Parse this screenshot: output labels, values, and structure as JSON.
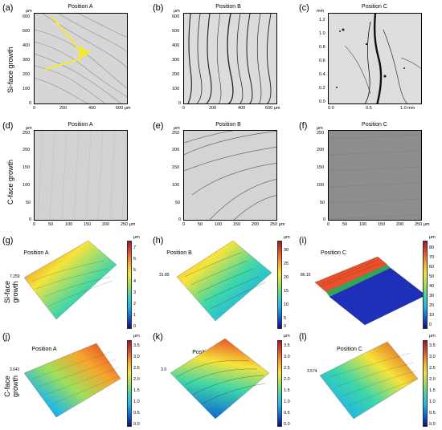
{
  "row_labels": {
    "si_face": "Si-face growth",
    "c_face": "C-face growth",
    "si_face_3d_line1": "Si-face",
    "si_face_3d_line2": "growth",
    "c_face_3d_line1": "C-face",
    "c_face_3d_line2": "growth"
  },
  "panels": {
    "a": {
      "label": "(a)",
      "title": "Position A",
      "unit": "μm",
      "yticks": [
        "600",
        "500",
        "400",
        "300",
        "200",
        "100",
        "0"
      ],
      "xticks": [
        "0",
        "200",
        "400",
        "600 μm"
      ]
    },
    "b": {
      "label": "(b)",
      "title": "Position B",
      "unit": "μm",
      "yticks": [
        "600",
        "500",
        "400",
        "300",
        "200",
        "100",
        "0"
      ],
      "xticks": [
        "0",
        "200",
        "400",
        "600 μm"
      ]
    },
    "c": {
      "label": "(c)",
      "title": "Position C",
      "unit": "mm",
      "yticks": [
        "1.2",
        "1.0",
        "0.8",
        "0.6",
        "0.4",
        "0.2",
        "0.0"
      ],
      "xticks": [
        "0.0",
        "0.5",
        "1.0 mm"
      ]
    },
    "d": {
      "label": "(d)",
      "title": "Position A",
      "unit": "μm",
      "yticks": [
        "250",
        "200",
        "150",
        "100",
        "50",
        "0"
      ],
      "xticks": [
        "0",
        "50",
        "100",
        "150",
        "200",
        "250 μm"
      ]
    },
    "e": {
      "label": "(e)",
      "title": "Position B",
      "unit": "μm",
      "yticks": [
        "250",
        "200",
        "150",
        "100",
        "50",
        "0"
      ],
      "xticks": [
        "0",
        "50",
        "100",
        "150",
        "200",
        "250 μm"
      ]
    },
    "f": {
      "label": "(f)",
      "title": "Position C",
      "unit": "μm",
      "yticks": [
        "250",
        "200",
        "150",
        "100",
        "50",
        "0"
      ],
      "xticks": [
        "0",
        "50",
        "100",
        "150",
        "200",
        "250 μm"
      ]
    },
    "g": {
      "label": "(g)",
      "title": "Position A",
      "zmax": "7.259",
      "cbar_unit": "μm",
      "cbar_ticks": [
        "7",
        "6",
        "5",
        "4",
        "3",
        "2",
        "1",
        "0"
      ]
    },
    "h": {
      "label": "(h)",
      "title": "Position B",
      "zmax": "31.89",
      "cbar_unit": "μm",
      "cbar_ticks": [
        "30",
        "25",
        "20",
        "15",
        "10",
        "5",
        "0"
      ]
    },
    "i": {
      "label": "(i)",
      "title": "Position C",
      "zmax": "86.16",
      "cbar_unit": "μm",
      "cbar_ticks": [
        "80",
        "70",
        "60",
        "50",
        "40",
        "30",
        "20",
        "10",
        "0"
      ]
    },
    "j": {
      "label": "(j)",
      "title": "Position A",
      "zmax": "3.641",
      "cbar_unit": "μm",
      "cbar_ticks": [
        "3.5",
        "3.0",
        "2.5",
        "2.0",
        "1.5",
        "1.0",
        "0.5",
        "0.0"
      ]
    },
    "k": {
      "label": "(k)",
      "title": "Position B",
      "zmax": "3.9",
      "cbar_unit": "μm",
      "cbar_ticks": [
        "3.5",
        "3.0",
        "2.5",
        "2.0",
        "1.5",
        "1.0",
        "0.5",
        "0.0"
      ]
    },
    "l": {
      "label": "(l)",
      "title": "Position C",
      "zmax": "3.574",
      "cbar_unit": "μm",
      "cbar_ticks": [
        "3.5",
        "3.0",
        "2.5",
        "2.0",
        "1.5",
        "1.0",
        "0.5",
        "0.0"
      ]
    }
  },
  "colors": {
    "rainbow": [
      "#0d0887",
      "#0b63d6",
      "#1fb6e8",
      "#3fd6a8",
      "#9fe05a",
      "#f6e43a",
      "#f8a52f",
      "#e7502a",
      "#a4161a"
    ],
    "image_gray": "#d9d9d9",
    "dark_gray": "#8d8d8d",
    "arrow": "#f6ea2a"
  }
}
